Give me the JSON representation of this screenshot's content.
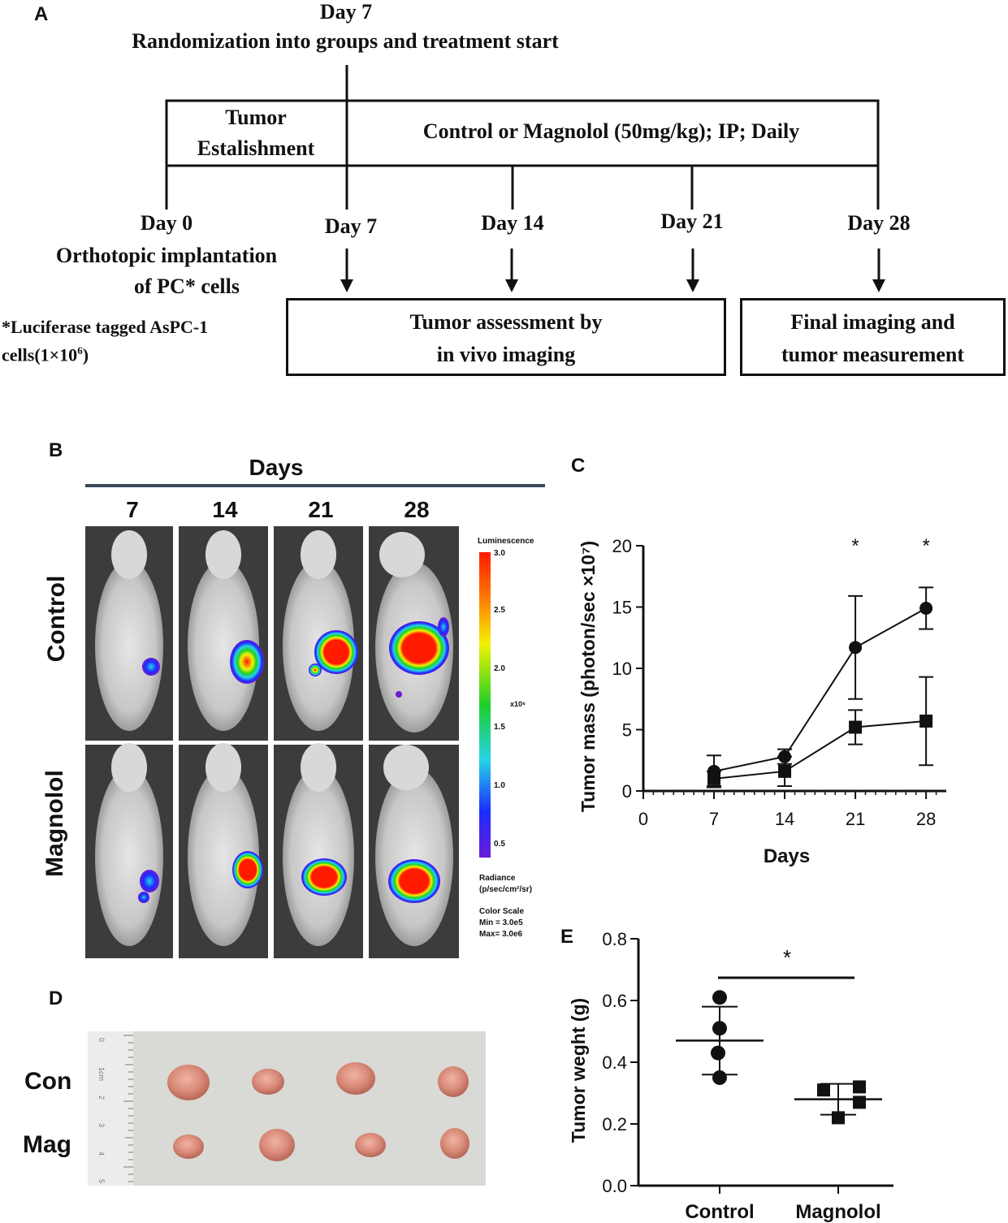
{
  "panel_a": {
    "label": "A",
    "top_title_day": "Day 7",
    "top_title_text": "Randomization  into groups  and  treatment  start",
    "phase_tumor_line1": "Tumor",
    "phase_tumor_line2": "Estalishment",
    "phase_treatment": "Control  or  Magnolol  (50mg/kg);  IP;  Daily",
    "day0": "Day 0",
    "day0_desc1": "Orthotopic  implantation",
    "day0_desc2": "of PC*  cells",
    "day7": "Day 7",
    "day14": "Day 14",
    "day21": "Day 21",
    "day28": "Day 28",
    "footnote1": "*Luciferase tagged AsPC-1",
    "footnote2": "cells(1×10",
    "footnote2_sup": "6",
    "footnote2_end": ")",
    "box1_line1": "Tumor  assessment by",
    "box1_line2": "in vivo  imaging",
    "box2_line1": "Final  imaging  and",
    "box2_line2": "tumor  measurement"
  },
  "panel_b": {
    "label": "B",
    "days_title": "Days",
    "day_labels": [
      "7",
      "14",
      "21",
      "28"
    ],
    "row_labels": [
      "Control",
      "Magnolol"
    ],
    "scale_title": "Luminescence",
    "scale_ticks": [
      "3.0",
      "2.5",
      "2.0",
      "1.5",
      "1.0",
      "0.5"
    ],
    "scale_unit": "x10⁶",
    "radiance_line1": "Radiance",
    "radiance_line2": "(p/sec/cm²/sr)",
    "color_scale_line1": "Color Scale",
    "color_scale_line2": "Min = 3.0e5",
    "color_scale_line3": "Max= 3.0e6",
    "colors": {
      "red": "#ff1a00",
      "yellow": "#f2f200",
      "green": "#1ecf2a",
      "cyan": "#25d3e6",
      "blue": "#1b2cff",
      "violet": "#6a1bd8"
    }
  },
  "panel_c": {
    "label": "C"
  },
  "panel_d": {
    "label": "D",
    "row_labels": [
      "Con",
      "Mag"
    ],
    "ruler_marks": [
      "0",
      "1cm",
      "2",
      "3",
      "4",
      "5"
    ]
  },
  "panel_e": {
    "label": "E"
  },
  "chart_data": [
    {
      "type": "line",
      "title": "",
      "xlabel": "Days",
      "ylabel": "Tumor mass (photon/sec ×10⁷)",
      "x": [
        7,
        14,
        21,
        28
      ],
      "xlim": [
        0,
        30
      ],
      "ylim": [
        0,
        20
      ],
      "xticks": [
        "0",
        "7",
        "14",
        "21",
        "28"
      ],
      "yticks": [
        "0",
        "5",
        "10",
        "15",
        "20"
      ],
      "significance": [
        {
          "x": 21,
          "label": "*"
        },
        {
          "x": 28,
          "label": "*"
        }
      ],
      "series": [
        {
          "name": "Control",
          "marker": "circle",
          "values": [
            1.6,
            2.8,
            11.7,
            14.9
          ],
          "error": [
            1.3,
            0.6,
            4.2,
            1.7
          ]
        },
        {
          "name": "Magnolol",
          "marker": "square",
          "values": [
            1.0,
            1.6,
            5.2,
            5.7
          ],
          "error": [
            0.6,
            1.2,
            1.4,
            3.6
          ]
        }
      ]
    },
    {
      "type": "scatter",
      "title": "",
      "xlabel": "",
      "ylabel": "Tumor weght (g)",
      "categories": [
        "Control",
        "Magnolol"
      ],
      "ylim": [
        0,
        0.8
      ],
      "yticks": [
        "0.0",
        "0.2",
        "0.4",
        "0.6",
        "0.8"
      ],
      "significance_label": "*",
      "series": [
        {
          "name": "Control",
          "marker": "circle",
          "points": [
            0.61,
            0.51,
            0.43,
            0.35
          ],
          "mean": 0.47,
          "sd": 0.11
        },
        {
          "name": "Magnolol",
          "marker": "square",
          "points": [
            0.32,
            0.31,
            0.27,
            0.22
          ],
          "mean": 0.28,
          "sd": 0.05
        }
      ]
    }
  ]
}
